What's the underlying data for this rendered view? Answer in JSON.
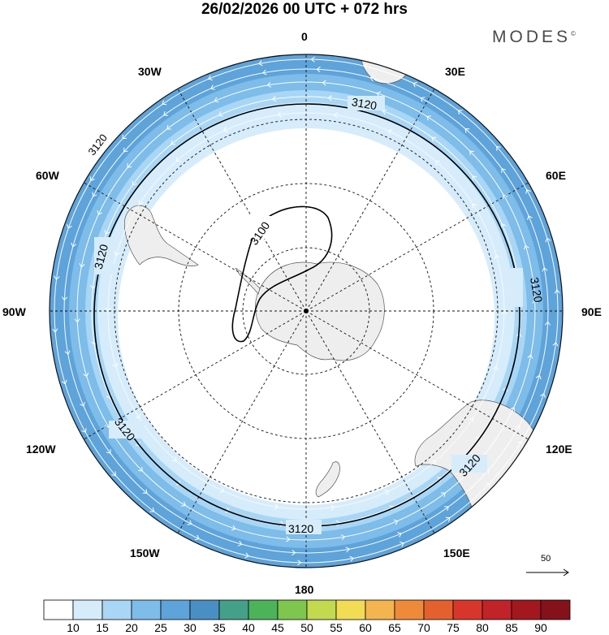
{
  "header": {
    "title": "26/02/2026  00 UTC  + 072 hrs",
    "logo": "MODES",
    "logo_mark": "©"
  },
  "map": {
    "projection": "south-polar-stereographic",
    "longitude_labels": {
      "lon_0": "0",
      "lon_30E": "30E",
      "lon_60E": "60E",
      "lon_90E": "90E",
      "lon_120E": "120E",
      "lon_150E": "150E",
      "lon_180": "180",
      "lon_150W": "150W",
      "lon_120W": "120W",
      "lon_90W": "90W",
      "lon_60W": "60W",
      "lon_30W": "30W"
    },
    "contour_labels": {
      "c1": "3120",
      "c2": "3120",
      "c3": "3120",
      "c4": "3120",
      "c5": "3120",
      "c6": "3120",
      "c7": "3100"
    },
    "contour_value": 3120,
    "reference_vector": "50",
    "colors": {
      "ocean_calm": "#ffffff",
      "band_15_20": "#d6ecfb",
      "band_20_25": "#a9d6f5",
      "band_25_30": "#7ebce9",
      "band_30_35": "#5ea3da",
      "land": "#eeeeee"
    }
  },
  "colorbar": {
    "labels": [
      "10",
      "15",
      "20",
      "25",
      "30",
      "35",
      "40",
      "45",
      "50",
      "55",
      "60",
      "65",
      "70",
      "75",
      "80",
      "85",
      "90"
    ],
    "colors": [
      "#ffffff",
      "#d6ecfb",
      "#a9d6f5",
      "#7ebce9",
      "#5ea3da",
      "#4a8fc4",
      "#45a08a",
      "#4cb35a",
      "#7fc64f",
      "#c3d94f",
      "#f3dc55",
      "#f4b450",
      "#f08a3b",
      "#e5602f",
      "#d9362b",
      "#c02328",
      "#a3171e",
      "#85121a"
    ]
  }
}
